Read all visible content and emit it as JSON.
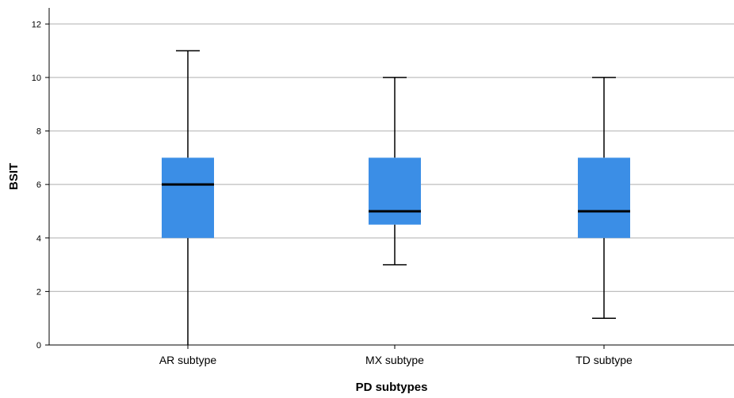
{
  "chart_data": {
    "type": "boxplot",
    "title": "",
    "xlabel": "PD subtypes",
    "ylabel": "BSIT",
    "ylim": [
      0,
      12.6
    ],
    "yticks": [
      0,
      2,
      4,
      6,
      8,
      10,
      12
    ],
    "grid": true,
    "categories": [
      "AR subtype",
      "MX subtype",
      "TD subtype"
    ],
    "boxes": [
      {
        "category": "AR subtype",
        "min": 0,
        "q1": 4,
        "median": 6,
        "q3": 7,
        "max": 11
      },
      {
        "category": "MX subtype",
        "min": 3,
        "q1": 4.5,
        "median": 5,
        "q3": 7,
        "max": 10
      },
      {
        "category": "TD subtype",
        "min": 1,
        "q1": 4,
        "median": 5,
        "q3": 7,
        "max": 10
      }
    ],
    "colors": {
      "box_fill": "#3b8ee6",
      "median_line": "#000000",
      "whisker": "#000000",
      "gridline": "#bfbfbf",
      "axis": "#000000"
    }
  }
}
